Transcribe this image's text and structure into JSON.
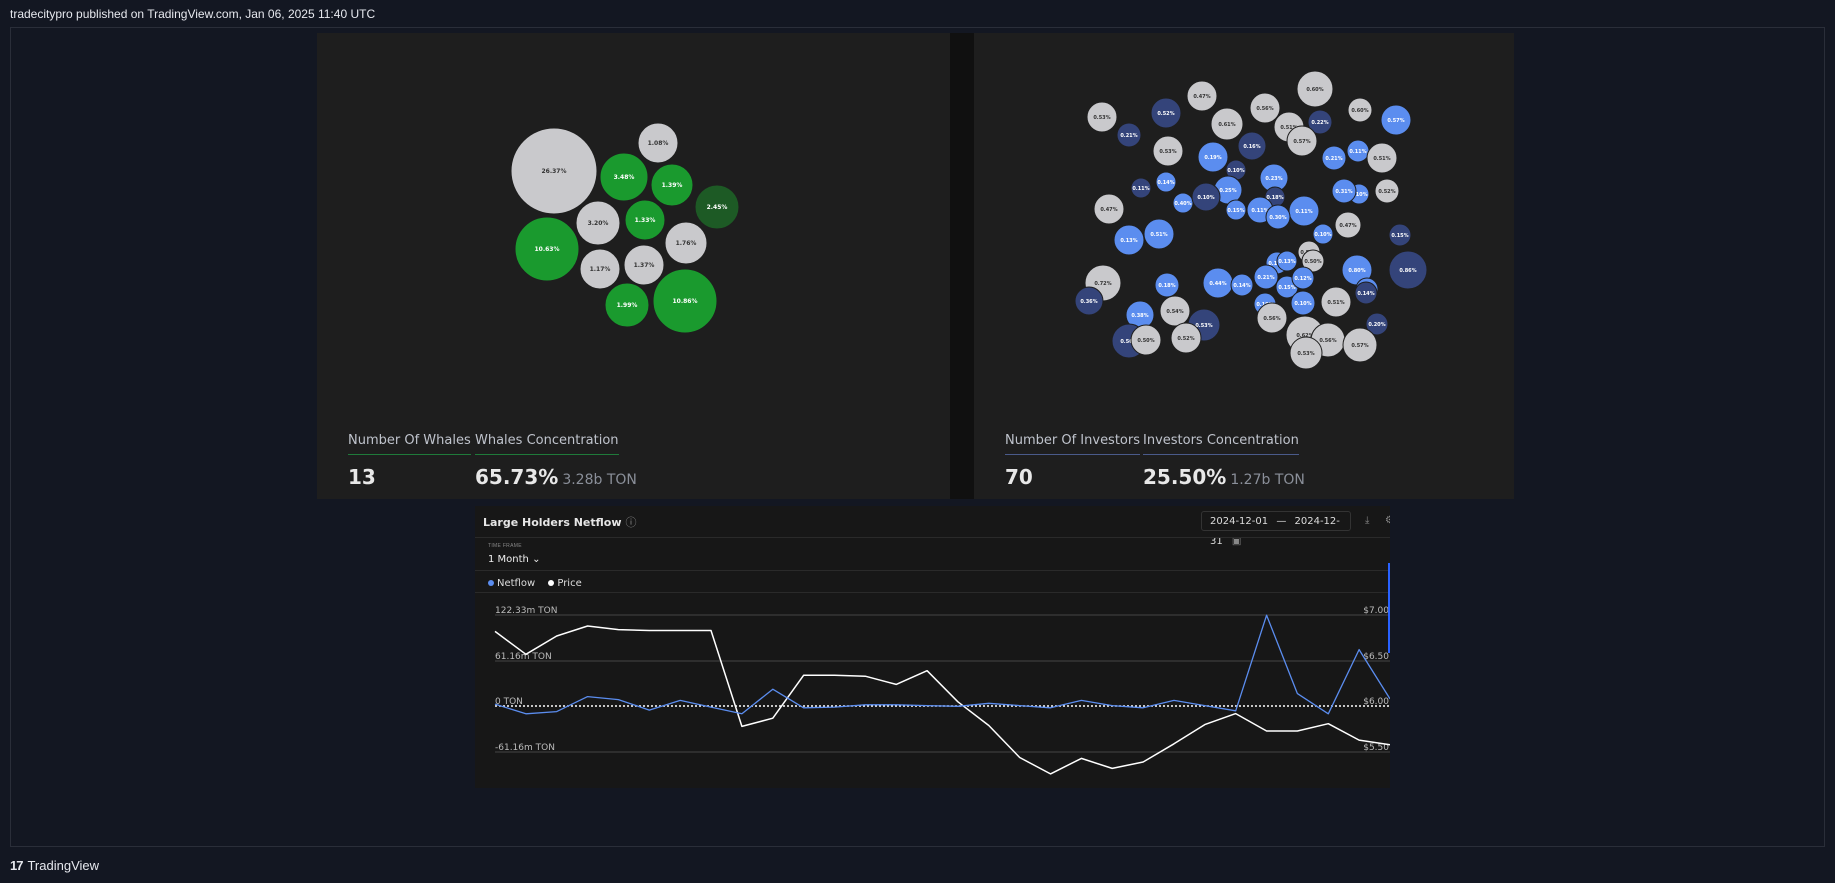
{
  "header": {
    "caption": "tradecitypro published on TradingView.com, Jan 06, 2025 11:40 UTC"
  },
  "whales": {
    "count_label": "Number Of Whales",
    "count_value": "13",
    "conc_label": "Whales Concentration",
    "conc_value": "65.73%",
    "conc_sub": "3.28b TON",
    "bubbles": [
      {
        "label": "26.37%",
        "c": "gray"
      },
      {
        "label": "1.08%",
        "c": "gray"
      },
      {
        "label": "3.48%",
        "c": "green"
      },
      {
        "label": "1.39%",
        "c": "green"
      },
      {
        "label": "2.45%",
        "c": "darkgreen"
      },
      {
        "label": "3.20%",
        "c": "gray"
      },
      {
        "label": "1.33%",
        "c": "green"
      },
      {
        "label": "1.76%",
        "c": "gray"
      },
      {
        "label": "10.63%",
        "c": "green"
      },
      {
        "label": "1.17%",
        "c": "gray"
      },
      {
        "label": "1.37%",
        "c": "gray"
      },
      {
        "label": "1.99%",
        "c": "green"
      },
      {
        "label": "10.86%",
        "c": "green"
      }
    ]
  },
  "investors": {
    "count_label": "Number Of Investors",
    "count_value": "70",
    "conc_label": "Investors Concentration",
    "conc_value": "25.50%",
    "conc_sub": "1.27b TON",
    "bubbles": [
      {
        "label": "0.53%",
        "c": "gray"
      },
      {
        "label": "0.21%",
        "c": "navy"
      },
      {
        "label": "0.52%",
        "c": "navy"
      },
      {
        "label": "0.47%",
        "c": "gray"
      },
      {
        "label": "0.61%",
        "c": "gray"
      },
      {
        "label": "0.56%",
        "c": "gray"
      },
      {
        "label": "0.60%",
        "c": "gray"
      },
      {
        "label": "0.53%",
        "c": "gray"
      },
      {
        "label": "0.19%",
        "c": "blue"
      },
      {
        "label": "0.16%",
        "c": "navy"
      },
      {
        "label": "0.51%",
        "c": "gray"
      },
      {
        "label": "0.22%",
        "c": "navy"
      },
      {
        "label": "0.60%",
        "c": "gray"
      },
      {
        "label": "0.57%",
        "c": "blue"
      },
      {
        "label": "0.23%",
        "c": "blue"
      },
      {
        "label": "0.57%",
        "c": "gray"
      },
      {
        "label": "0.21%",
        "c": "blue"
      },
      {
        "label": "0.11%",
        "c": "blue"
      },
      {
        "label": "0.51%",
        "c": "gray"
      },
      {
        "label": "0.10%",
        "c": "navy"
      },
      {
        "label": "0.14%",
        "c": "blue"
      },
      {
        "label": "0.11%",
        "c": "navy"
      },
      {
        "label": "0.25%",
        "c": "blue"
      },
      {
        "label": "0.10%",
        "c": "blue"
      },
      {
        "label": "0.18%",
        "c": "navy"
      },
      {
        "label": "0.52%",
        "c": "gray"
      },
      {
        "label": "0.11%",
        "c": "blue"
      },
      {
        "label": "0.31%",
        "c": "blue"
      },
      {
        "label": "0.40%",
        "c": "blue"
      },
      {
        "label": "0.10%",
        "c": "navy"
      },
      {
        "label": "0.11%",
        "c": "blue"
      },
      {
        "label": "0.15%",
        "c": "blue"
      },
      {
        "label": "0.47%",
        "c": "gray"
      },
      {
        "label": "0.30%",
        "c": "blue"
      },
      {
        "label": "0.47%",
        "c": "gray"
      },
      {
        "label": "0.51%",
        "c": "blue"
      },
      {
        "label": "0.10%",
        "c": "blue"
      },
      {
        "label": "0.57%",
        "c": "gray"
      },
      {
        "label": "0.15%",
        "c": "navy"
      },
      {
        "label": "0.13%",
        "c": "blue"
      },
      {
        "label": "0.10%",
        "c": "blue"
      },
      {
        "label": "0.13%",
        "c": "blue"
      },
      {
        "label": "0.50%",
        "c": "gray"
      },
      {
        "label": "0.80%",
        "c": "blue"
      },
      {
        "label": "0.86%",
        "c": "navy"
      },
      {
        "label": "0.72%",
        "c": "gray"
      },
      {
        "label": "0.18%",
        "c": "blue"
      },
      {
        "label": "0.44%",
        "c": "blue"
      },
      {
        "label": "0.14%",
        "c": "blue"
      },
      {
        "label": "0.21%",
        "c": "blue"
      },
      {
        "label": "0.15%",
        "c": "blue"
      },
      {
        "label": "0.12%",
        "c": "blue"
      },
      {
        "label": "0.13%",
        "c": "blue"
      },
      {
        "label": "0.14%",
        "c": "navy"
      },
      {
        "label": "0.36%",
        "c": "navy"
      },
      {
        "label": "0.38%",
        "c": "blue"
      },
      {
        "label": "0.54%",
        "c": "gray"
      },
      {
        "label": "0.19%",
        "c": "blue"
      },
      {
        "label": "0.10%",
        "c": "blue"
      },
      {
        "label": "0.51%",
        "c": "gray"
      },
      {
        "label": "0.53%",
        "c": "navy"
      },
      {
        "label": "0.56%",
        "c": "gray"
      },
      {
        "label": "0.20%",
        "c": "navy"
      },
      {
        "label": "0.56%",
        "c": "navy"
      },
      {
        "label": "0.50%",
        "c": "gray"
      },
      {
        "label": "0.52%",
        "c": "gray"
      },
      {
        "label": "0.62%",
        "c": "gray"
      },
      {
        "label": "0.56%",
        "c": "gray"
      },
      {
        "label": "0.57%",
        "c": "gray"
      },
      {
        "label": "0.53%",
        "c": "gray"
      }
    ]
  },
  "netflow": {
    "title": "Large Holders Netflow",
    "date_from": "2024-12-01",
    "date_dash": "—",
    "date_to": "2024-12-31",
    "timeframe_label": "TIME FRAME",
    "timeframe_value": "1 Month ⌄",
    "legend_netflow": "Netflow",
    "legend_price": "Price"
  },
  "chart_data": {
    "type": "line",
    "title": "Large Holders Netflow",
    "y_left_ticks": [
      "122.33m TON",
      "61.16m TON",
      "0 TON",
      "-61.16m TON"
    ],
    "y_right_ticks": [
      "$7.00",
      "$6.50",
      "$6.00",
      "$5.50"
    ],
    "ylim_left": [
      -61.16,
      122.33
    ],
    "ylim_right": [
      5.5,
      7.0
    ],
    "colors": {
      "netflow": "#5b8def",
      "price": "#ffffff"
    },
    "series": [
      {
        "name": "Netflow",
        "unit": "m TON",
        "values": [
          3,
          -10,
          -7,
          13,
          9,
          -5,
          8,
          -1,
          -10,
          23,
          -2,
          -1,
          2,
          2,
          1,
          0,
          4,
          1,
          -2,
          8,
          1,
          -2,
          8,
          1,
          -6,
          122,
          17,
          -10,
          76,
          10
        ]
      },
      {
        "name": "Price",
        "unit": "$",
        "values": [
          6.82,
          6.57,
          6.77,
          6.88,
          6.84,
          6.83,
          6.83,
          6.83,
          5.78,
          5.87,
          6.34,
          6.34,
          6.33,
          6.24,
          6.39,
          6.05,
          5.79,
          5.44,
          5.26,
          5.43,
          5.32,
          5.39,
          5.59,
          5.8,
          5.92,
          5.73,
          5.73,
          5.81,
          5.63,
          5.58
        ]
      }
    ]
  },
  "footer": {
    "logo": "17",
    "brand": "TradingView"
  }
}
